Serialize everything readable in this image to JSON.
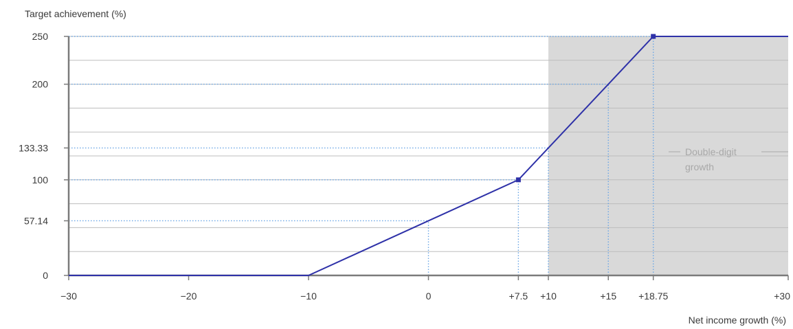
{
  "chart_data": {
    "type": "line",
    "ylabel": "Target achievement (%)",
    "xlabel": "Net income growth (%)",
    "x_ticks": [
      {
        "value": -30,
        "label": "−30"
      },
      {
        "value": -20,
        "label": "−20"
      },
      {
        "value": -10,
        "label": "−10"
      },
      {
        "value": 0,
        "label": "0"
      },
      {
        "value": 7.5,
        "label": "+7.5"
      },
      {
        "value": 10,
        "label": "+10"
      },
      {
        "value": 15,
        "label": "+15"
      },
      {
        "value": 18.75,
        "label": "+18.75"
      },
      {
        "value": 30,
        "label": "+30"
      }
    ],
    "y_ticks": [
      {
        "value": 0,
        "label": "0"
      },
      {
        "value": 57.14,
        "label": "57.14"
      },
      {
        "value": 100,
        "label": "100"
      },
      {
        "value": 133.33,
        "label": "133.33"
      },
      {
        "value": 200,
        "label": "200"
      },
      {
        "value": 250,
        "label": "250"
      }
    ],
    "gridlines_y": [
      25,
      50,
      75,
      100,
      125,
      150,
      175,
      200,
      225,
      250
    ],
    "xlim": [
      -30,
      30
    ],
    "ylim": [
      0,
      250
    ],
    "series": [
      {
        "points": [
          {
            "x": -30,
            "y": 0
          },
          {
            "x": -10,
            "y": 0
          },
          {
            "x": 7.5,
            "y": 100
          },
          {
            "x": 18.75,
            "y": 250
          },
          {
            "x": 30,
            "y": 250
          }
        ],
        "markers": [
          {
            "x": 7.5,
            "y": 100
          },
          {
            "x": 18.75,
            "y": 250
          }
        ]
      }
    ],
    "reference_lines": [
      {
        "x": 0,
        "y": 57.14
      },
      {
        "x": 7.5,
        "y": 100
      },
      {
        "x": 10,
        "y": 133.33
      },
      {
        "x": 15,
        "y": 200
      },
      {
        "x": 18.75,
        "y": 250
      }
    ],
    "shaded_region": {
      "x_from": 10,
      "x_to": 30,
      "label_line1": "Double-digit",
      "label_line2": "growth"
    },
    "colors": {
      "line": "#2e31a8",
      "reference": "#6aa6e6",
      "shade": "#d9d9d9",
      "grid": "#bdbdbd",
      "axis": "#7a7a7a",
      "shade_label": "#a8a8a8"
    }
  }
}
